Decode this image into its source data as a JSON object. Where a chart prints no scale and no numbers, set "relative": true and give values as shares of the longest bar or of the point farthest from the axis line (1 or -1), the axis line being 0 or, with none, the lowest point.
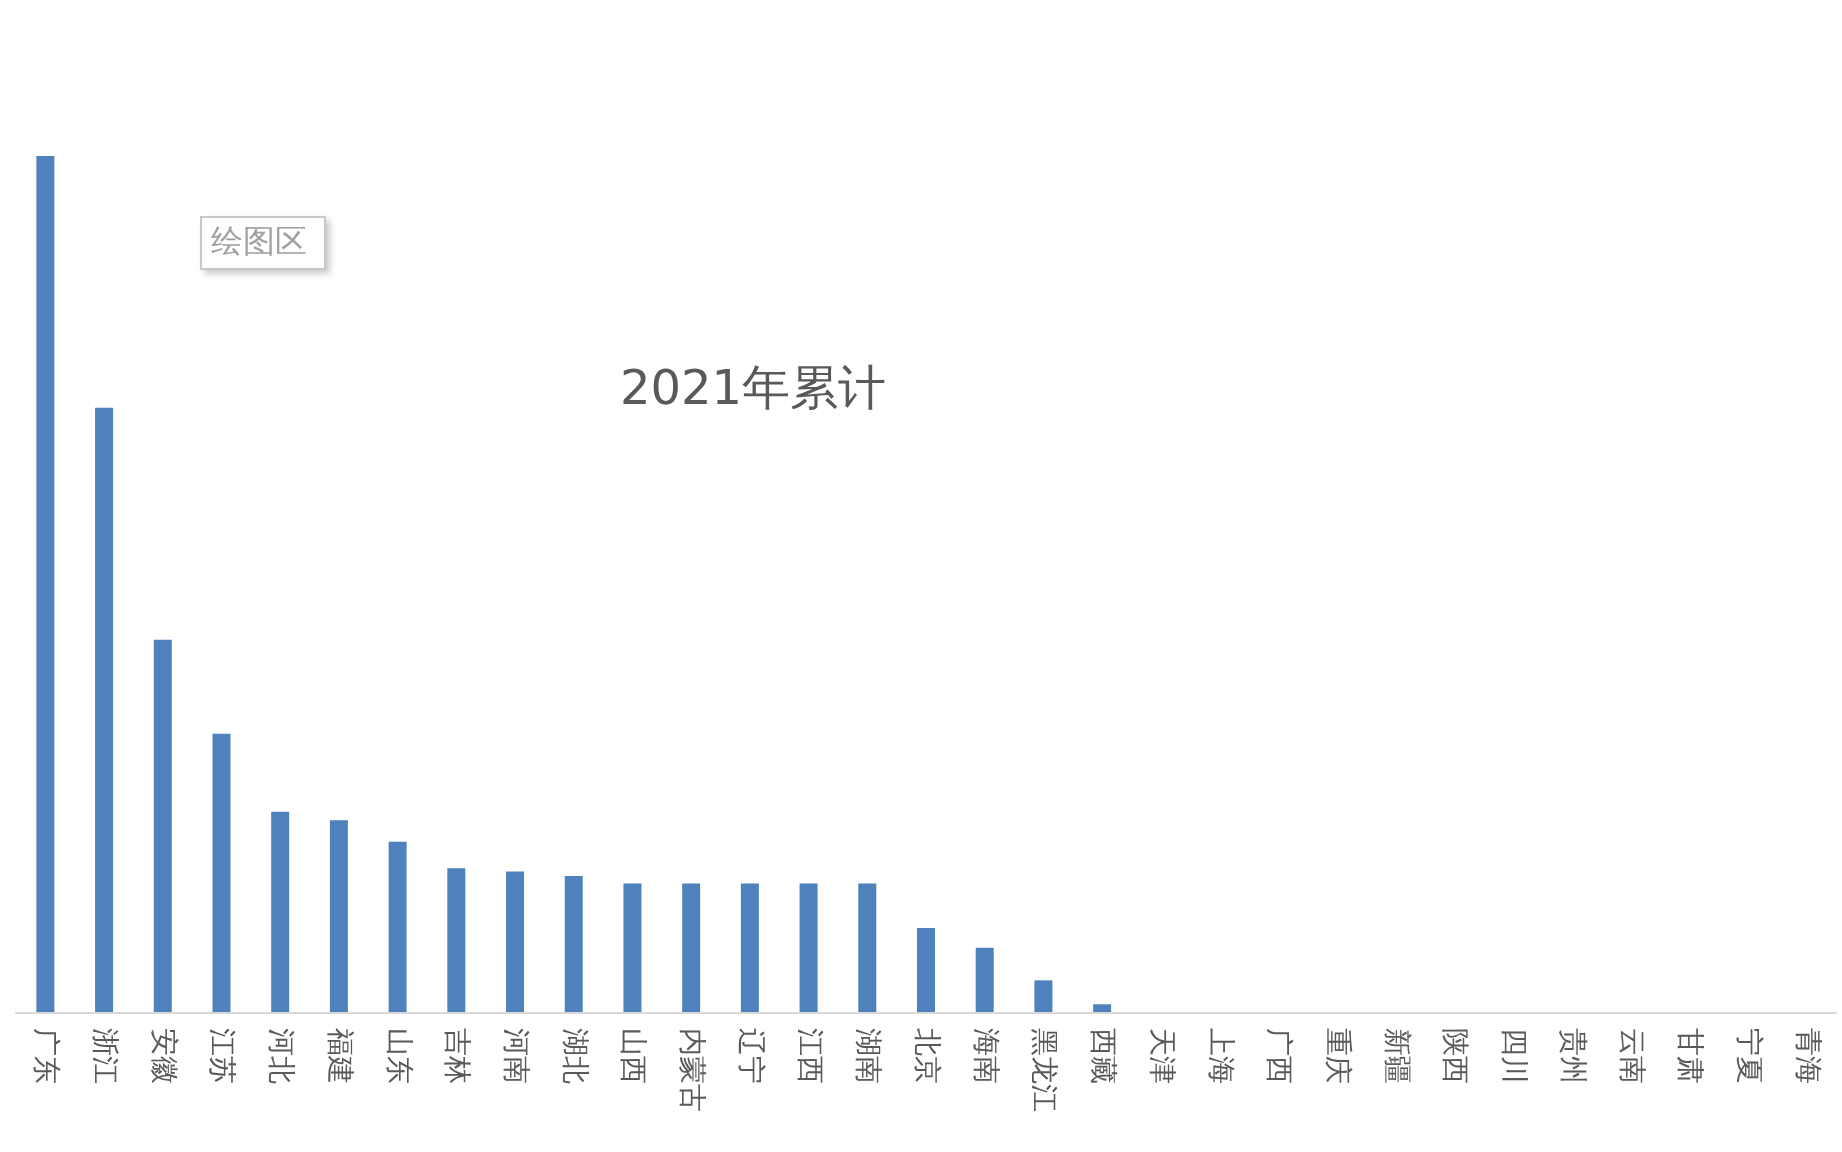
{
  "chart_data": {
    "type": "bar",
    "title": "2021年累计",
    "relative": true,
    "categories": [
      "广东",
      "浙江",
      "安徽",
      "江苏",
      "河北",
      "福建",
      "山东",
      "吉林",
      "河南",
      "湖北",
      "山西",
      "内蒙古",
      "辽宁",
      "江西",
      "湖南",
      "北京",
      "海南",
      "黑龙江",
      "西藏",
      "天津",
      "上海",
      "广西",
      "重庆",
      "新疆",
      "陕西",
      "四川",
      "贵州",
      "云南",
      "甘肃",
      "宁夏",
      "青海"
    ],
    "values": [
      1,
      0.706,
      0.435,
      0.325,
      0.234,
      0.224,
      0.199,
      0.168,
      0.164,
      0.159,
      0.15,
      0.15,
      0.15,
      0.15,
      0.15,
      0.098,
      0.075,
      0.037,
      0.009,
      0,
      0,
      0,
      0,
      0,
      0,
      0,
      0,
      0,
      0,
      0,
      0
    ],
    "color": "#4f81bd",
    "annotations": [
      "绘图区"
    ]
  }
}
